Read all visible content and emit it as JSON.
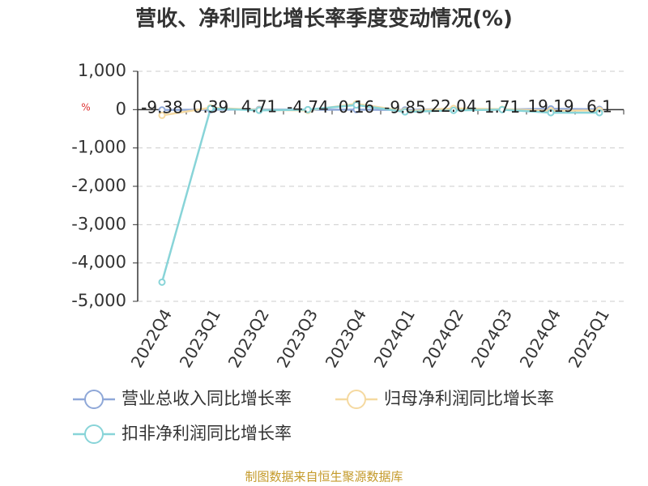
{
  "chart_data": {
    "type": "line",
    "title": "营收、净利同比增长率季度变动情况(%)",
    "unit": "%",
    "source": "制图数据来自恒生聚源数据库",
    "categories": [
      "2022Q4",
      "2023Q1",
      "2023Q2",
      "2023Q3",
      "2023Q4",
      "2024Q1",
      "2024Q2",
      "2024Q3",
      "2024Q4",
      "2025Q1"
    ],
    "series": [
      {
        "name": "营业总收入同比增长率",
        "color": "#8fa8d8",
        "show_labels": true,
        "values": [
          -9.38,
          0.39,
          4.71,
          -4.74,
          0.16,
          -9.85,
          22.04,
          1.71,
          19.19,
          6.1
        ]
      },
      {
        "name": "归母净利润同比增长率",
        "color": "#f5d9a0",
        "show_labels": false,
        "values": [
          -150,
          50,
          -10,
          -20,
          150,
          -40,
          30,
          10,
          -30,
          -20
        ]
      },
      {
        "name": "扣非净利润同比增长率",
        "color": "#88d4d8",
        "show_labels": false,
        "values": [
          -4500,
          30,
          -20,
          0,
          120,
          -60,
          -20,
          0,
          -80,
          -80
        ]
      }
    ],
    "ylim": [
      -5000,
      1000
    ],
    "yticks": [
      {
        "value": -5000,
        "label": "-5,000"
      },
      {
        "value": -4000,
        "label": "-4,000"
      },
      {
        "value": -3000,
        "label": "-3,000"
      },
      {
        "value": -2000,
        "label": "-2,000"
      },
      {
        "value": -1000,
        "label": "-1,000"
      },
      0,
      {
        "value": 1000,
        "label": "1,000"
      }
    ],
    "grid": true
  }
}
